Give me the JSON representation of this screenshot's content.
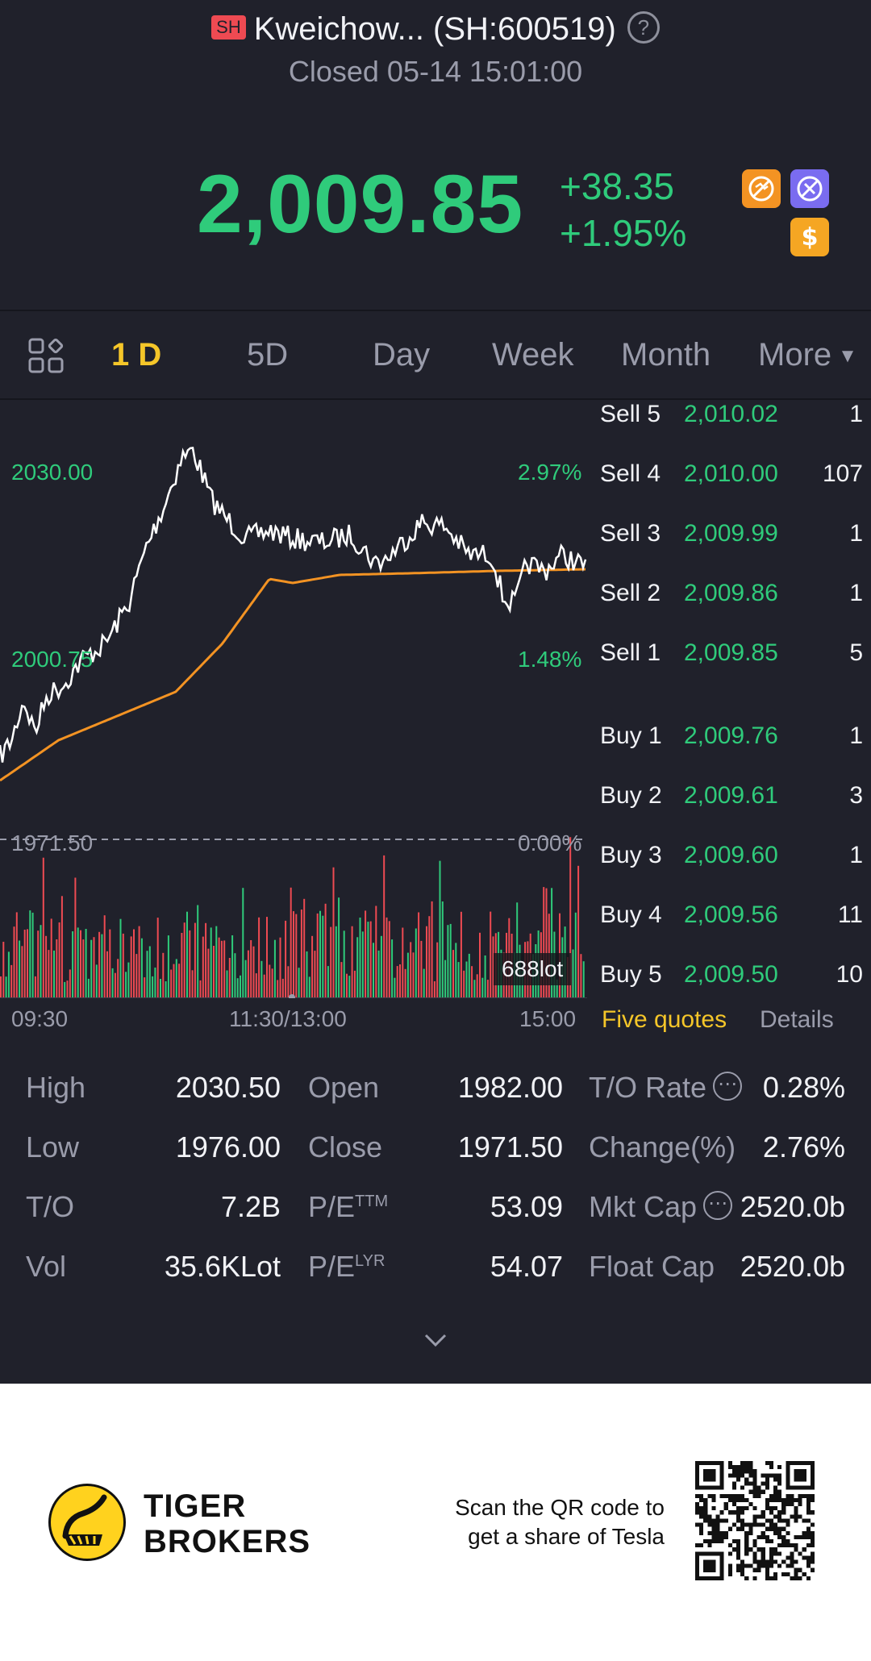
{
  "header": {
    "exchange_badge": "SH",
    "title": "Kweichow... (SH:600519)",
    "status": "Closed 05-14 15:01:00",
    "help_icon": "question-circle-icon"
  },
  "quote": {
    "price": "2,009.85",
    "change": "+38.35",
    "change_pct": "+1.95%",
    "color_up": "#2fcb7b",
    "badges": [
      "no-short-icon",
      "no-margin-icon",
      "dollar-icon"
    ]
  },
  "tabs": {
    "layout_icon": "grid-layout-icon",
    "items": [
      "1 D",
      "5D",
      "Day",
      "Week",
      "Month",
      "More"
    ],
    "active": "1 D"
  },
  "chart": {
    "y_left": [
      "2030.00",
      "2000.75",
      "1971.50"
    ],
    "y_right": [
      "2.97%",
      "1.48%",
      "0.00%"
    ],
    "x_labels": [
      "09:30",
      "11:30/13:00",
      "15:00"
    ],
    "volume_label": "688lot",
    "price_color": "#ffffff",
    "avg_color": "#f39323",
    "up_color": "#2fcb7b",
    "down_color": "#ee4a52"
  },
  "order_book": {
    "sells": [
      {
        "label": "Sell 5",
        "price": "2,010.02",
        "qty": "1"
      },
      {
        "label": "Sell 4",
        "price": "2,010.00",
        "qty": "107"
      },
      {
        "label": "Sell 3",
        "price": "2,009.99",
        "qty": "1"
      },
      {
        "label": "Sell 2",
        "price": "2,009.86",
        "qty": "1"
      },
      {
        "label": "Sell 1",
        "price": "2,009.85",
        "qty": "5"
      }
    ],
    "buys": [
      {
        "label": "Buy 1",
        "price": "2,009.76",
        "qty": "1"
      },
      {
        "label": "Buy 2",
        "price": "2,009.61",
        "qty": "3"
      },
      {
        "label": "Buy 3",
        "price": "2,009.60",
        "qty": "1"
      },
      {
        "label": "Buy 4",
        "price": "2,009.56",
        "qty": "11"
      },
      {
        "label": "Buy 5",
        "price": "2,009.50",
        "qty": "10"
      }
    ],
    "tab_five": "Five quotes",
    "tab_details": "Details"
  },
  "stats": {
    "high_label": "High",
    "high": "2030.50",
    "open_label": "Open",
    "open": "1982.00",
    "to_rate_label": "T/O Rate",
    "to_rate": "0.28%",
    "low_label": "Low",
    "low": "1976.00",
    "close_label": "Close",
    "close": "1971.50",
    "change_pct_label": "Change(%)",
    "change_pct": "2.76%",
    "to_label": "T/O",
    "to": "7.2B",
    "pe_label": "P/E",
    "pe_ttm_sup": "TTM",
    "pe_ttm": "53.09",
    "mkt_cap_label": "Mkt Cap",
    "mkt_cap": "2520.0b",
    "vol_label": "Vol",
    "vol": "35.6KLot",
    "pe_lyr_sup": "LYR",
    "pe_lyr": "54.07",
    "float_cap_label": "Float Cap",
    "float_cap": "2520.0b",
    "expand_icon": "chevron-down-icon"
  },
  "footer": {
    "brand_line1": "TIGER",
    "brand_line2": "BROKERS",
    "scan_line1": "Scan the QR code to",
    "scan_line2": "get a share of Tesla",
    "qr_icon": "qr-code-icon"
  }
}
